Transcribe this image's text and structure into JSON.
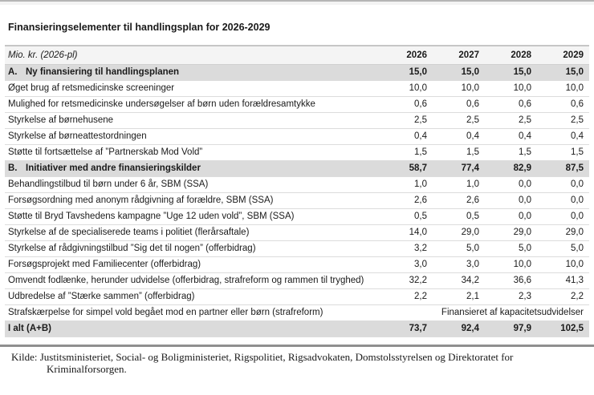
{
  "page": {
    "title": "Finansieringselementer til handlingsplan for 2026-2029"
  },
  "table": {
    "unit_label": "Mio. kr. (2026-pl)",
    "year_columns": [
      "2026",
      "2027",
      "2028",
      "2029"
    ],
    "colors": {
      "section_row_bg": "#dbdbdb",
      "header_row_bg": "#f4f4f4",
      "row_border": "#dcdcdc"
    },
    "rows": [
      {
        "type": "section",
        "prefix": "A.",
        "label": "Ny finansiering til handlingsplanen",
        "values": [
          "15,0",
          "15,0",
          "15,0",
          "15,0"
        ]
      },
      {
        "type": "normal",
        "prefix": "",
        "label": "Øget brug af retsmedicinske screeninger",
        "values": [
          "10,0",
          "10,0",
          "10,0",
          "10,0"
        ]
      },
      {
        "type": "normal",
        "prefix": "",
        "label": "Mulighed for retsmedicinske undersøgelser af børn uden forældresamtykke",
        "values": [
          "0,6",
          "0,6",
          "0,6",
          "0,6"
        ]
      },
      {
        "type": "normal",
        "prefix": "",
        "label": "Styrkelse af børnehusene",
        "values": [
          "2,5",
          "2,5",
          "2,5",
          "2,5"
        ]
      },
      {
        "type": "normal",
        "prefix": "",
        "label": "Styrkelse af børneattestordningen",
        "values": [
          "0,4",
          "0,4",
          "0,4",
          "0,4"
        ]
      },
      {
        "type": "normal",
        "prefix": "",
        "label": "Støtte til fortsættelse af ”Partnerskab Mod Vold”",
        "values": [
          "1,5",
          "1,5",
          "1,5",
          "1,5"
        ]
      },
      {
        "type": "section",
        "prefix": "B.",
        "label": "Initiativer med andre finansieringskilder",
        "values": [
          "58,7",
          "77,4",
          "82,9",
          "87,5"
        ]
      },
      {
        "type": "normal",
        "prefix": "",
        "label": "Behandlingstilbud til børn under 6 år, SBM (SSA)",
        "values": [
          "1,0",
          "1,0",
          "0,0",
          "0,0"
        ]
      },
      {
        "type": "normal",
        "prefix": "",
        "label": "Forsøgsordning med anonym rådgivning af forældre, SBM (SSA)",
        "values": [
          "2,6",
          "2,6",
          "0,0",
          "0,0"
        ]
      },
      {
        "type": "normal",
        "prefix": "",
        "label": "Støtte til Bryd Tavshedens kampagne ”Uge 12 uden vold”, SBM (SSA)",
        "values": [
          "0,5",
          "0,5",
          "0,0",
          "0,0"
        ]
      },
      {
        "type": "normal",
        "prefix": "",
        "label": "Styrkelse af de specialiserede teams i politiet (flerårsaftale)",
        "values": [
          "14,0",
          "29,0",
          "29,0",
          "29,0"
        ]
      },
      {
        "type": "normal",
        "prefix": "",
        "label": "Styrkelse af rådgivningstilbud ”Sig det til nogen” (offerbidrag)",
        "values": [
          "3,2",
          "5,0",
          "5,0",
          "5,0"
        ]
      },
      {
        "type": "normal",
        "prefix": "",
        "label": "Forsøgsprojekt med Familiecenter (offerbidrag)",
        "values": [
          "3,0",
          "3,0",
          "10,0",
          "10,0"
        ]
      },
      {
        "type": "normal",
        "prefix": "",
        "label": "Omvendt fodlænke, herunder udvidelse (offerbidrag, strafreform og rammen til tryghed)",
        "values": [
          "32,2",
          "34,2",
          "36,6",
          "41,3"
        ]
      },
      {
        "type": "normal",
        "prefix": "",
        "label": "Udbredelse af ”Stærke sammen” (offerbidrag)",
        "values": [
          "2,2",
          "2,1",
          "2,3",
          "2,2"
        ]
      },
      {
        "type": "note",
        "prefix": "",
        "label": "Strafskærpelse for simpel vold begået mod en partner eller børn (strafreform)",
        "note": "Finansieret af kapacitetsudvidelser"
      },
      {
        "type": "total",
        "prefix": "",
        "label": "I alt (A+B)",
        "values": [
          "73,7",
          "92,4",
          "97,9",
          "102,5"
        ]
      }
    ]
  },
  "footer": {
    "source": "Kilde: Justitsministeriet, Social- og Boligministeriet, Rigspolitiet, Rigsadvokaten, Domstolsstyrelsen og Direktoratet for Kriminalforsorgen."
  }
}
